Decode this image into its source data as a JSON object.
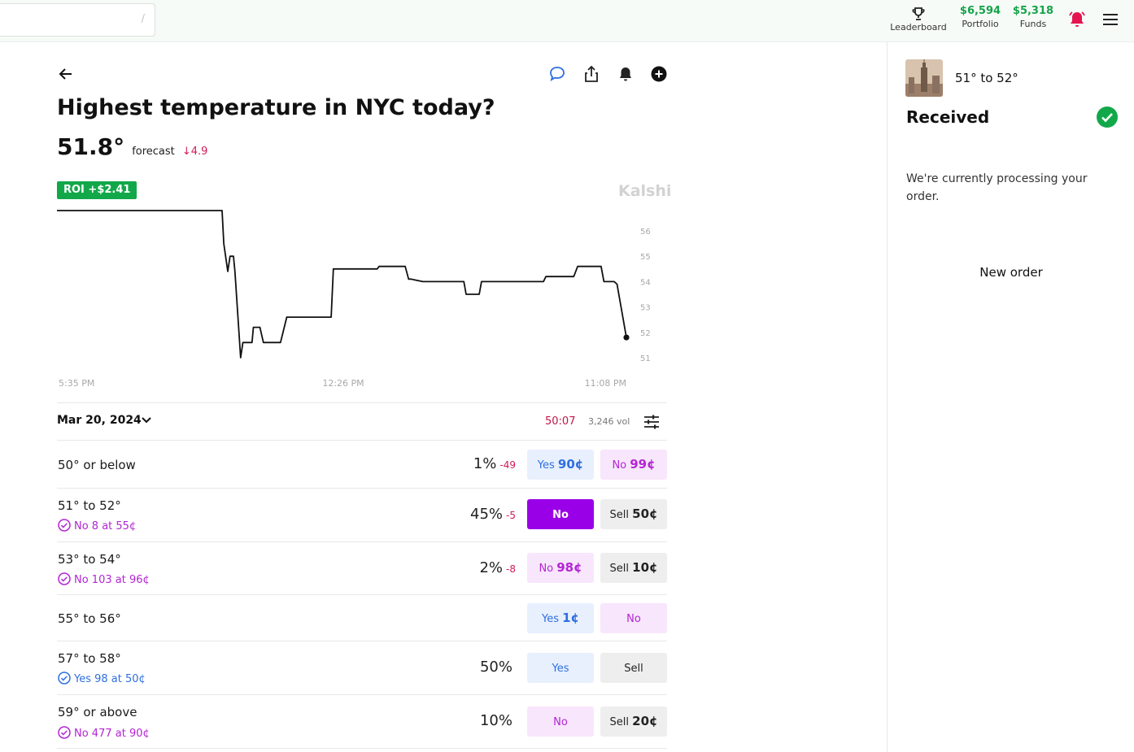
{
  "header": {
    "search": {
      "placeholder": "",
      "shortcut": "/"
    },
    "leaderboard": {
      "label": "Leaderboard",
      "icon": "trophy-icon"
    },
    "portfolio": {
      "value": "$6,594",
      "label": "Portfolio"
    },
    "funds": {
      "value": "$5,318",
      "label": "Funds"
    },
    "icons": [
      "bell-icon",
      "menu-icon"
    ],
    "accent_green": "#17a34a",
    "alert_red": "#e5144f"
  },
  "market": {
    "title": "Highest temperature in NYC today?",
    "forecast_value": "51.8°",
    "forecast_label": "forecast",
    "forecast_delta": "↓4.9",
    "roi_badge": "ROI +$2.41",
    "brand": "Kalshi",
    "action_icons": [
      "comment-icon",
      "share-icon",
      "bell-icon",
      "add-icon"
    ]
  },
  "chart_data": {
    "type": "line",
    "y_ticks": [
      "56",
      "55",
      "54",
      "53",
      "52",
      "51"
    ],
    "x_ticks": [
      "5:35 PM",
      "12:26 PM",
      "11:08 PM"
    ],
    "ylim": [
      50.5,
      56.5
    ],
    "x": [
      0,
      0.29,
      0.293,
      0.3,
      0.304,
      0.31,
      0.3125,
      0.3225,
      0.3265,
      0.3425,
      0.345,
      0.3565,
      0.3625,
      0.365,
      0.3925,
      0.4035,
      0.4105,
      0.4175,
      0.4245,
      0.4815,
      0.4855,
      0.5625,
      0.5655,
      0.6115,
      0.6175,
      0.6215,
      0.6425,
      0.6555,
      0.6715,
      0.6845,
      0.6945,
      0.7145,
      0.7185,
      0.7415,
      0.7455,
      0.7715,
      0.7755,
      0.7915,
      0.7955,
      0.8545,
      0.8585,
      0.8755,
      0.8795,
      0.9075,
      0.9145,
      0.9345,
      0.9385,
      0.9555,
      0.9605,
      0.9785,
      0.9835,
      1.0
    ],
    "values": [
      56.8,
      56.8,
      55.5,
      54.4,
      55.0,
      55.0,
      54.4,
      51.0,
      51.6,
      51.6,
      52.2,
      52.2,
      51.6,
      51.6,
      51.6,
      52.6,
      52.6,
      52.6,
      52.6,
      52.6,
      54.5,
      54.5,
      54.6,
      54.6,
      54.1,
      54.1,
      54.0,
      54.0,
      54.0,
      54.0,
      54.0,
      54.0,
      53.5,
      53.5,
      54.0,
      54.0,
      54.0,
      54.0,
      54.0,
      54.0,
      54.2,
      54.2,
      54.2,
      54.2,
      54.6,
      54.6,
      54.6,
      54.6,
      54.0,
      54.0,
      53.9,
      51.8
    ]
  },
  "filters": {
    "date": "Mar 20, 2024",
    "countdown": "50:07",
    "volume": "3,246 vol"
  },
  "outcomes": [
    {
      "name": "50° or below",
      "position": "",
      "position_side": "",
      "pct": "1%",
      "delta": "-49",
      "btn1": {
        "label": "Yes ",
        "price": "90¢",
        "style": "yes"
      },
      "btn2": {
        "label": "No ",
        "price": "99¢",
        "style": "no"
      }
    },
    {
      "name": "51° to 52°",
      "position": "No 8 at 55¢",
      "position_side": "no",
      "pct": "45%",
      "delta": "-5",
      "btn1": {
        "label": "No",
        "price": "",
        "style": "no-solid"
      },
      "btn2": {
        "label": "Sell ",
        "price": "50¢",
        "style": "sell"
      }
    },
    {
      "name": "53° to 54°",
      "position": "No 103 at 96¢",
      "position_side": "no",
      "pct": "2%",
      "delta": "-8",
      "btn1": {
        "label": "No ",
        "price": "98¢",
        "style": "no"
      },
      "btn2": {
        "label": "Sell ",
        "price": "10¢",
        "style": "sell"
      }
    },
    {
      "name": "55° to 56°",
      "position": "",
      "position_side": "",
      "pct": "",
      "delta": "",
      "btn1": {
        "label": "Yes ",
        "price": "1¢",
        "style": "yes"
      },
      "btn2": {
        "label": "No",
        "price": "",
        "style": "no"
      }
    },
    {
      "name": "57° to 58°",
      "position": "Yes 98 at 50¢",
      "position_side": "yes",
      "pct": "50%",
      "delta": "",
      "btn1": {
        "label": "Yes",
        "price": "",
        "style": "yes"
      },
      "btn2": {
        "label": "Sell",
        "price": "",
        "style": "sell"
      }
    },
    {
      "name": "59° or above",
      "position": "No 477 at 90¢",
      "position_side": "no",
      "pct": "10%",
      "delta": "",
      "btn1": {
        "label": "No",
        "price": "",
        "style": "no"
      },
      "btn2": {
        "label": "Sell ",
        "price": "20¢",
        "style": "sell"
      }
    }
  ],
  "order_panel": {
    "selection": "51° to 52°",
    "status": "Received",
    "message": "We're currently processing your order.",
    "new_order": "New order",
    "check_color": "#12a84a"
  }
}
